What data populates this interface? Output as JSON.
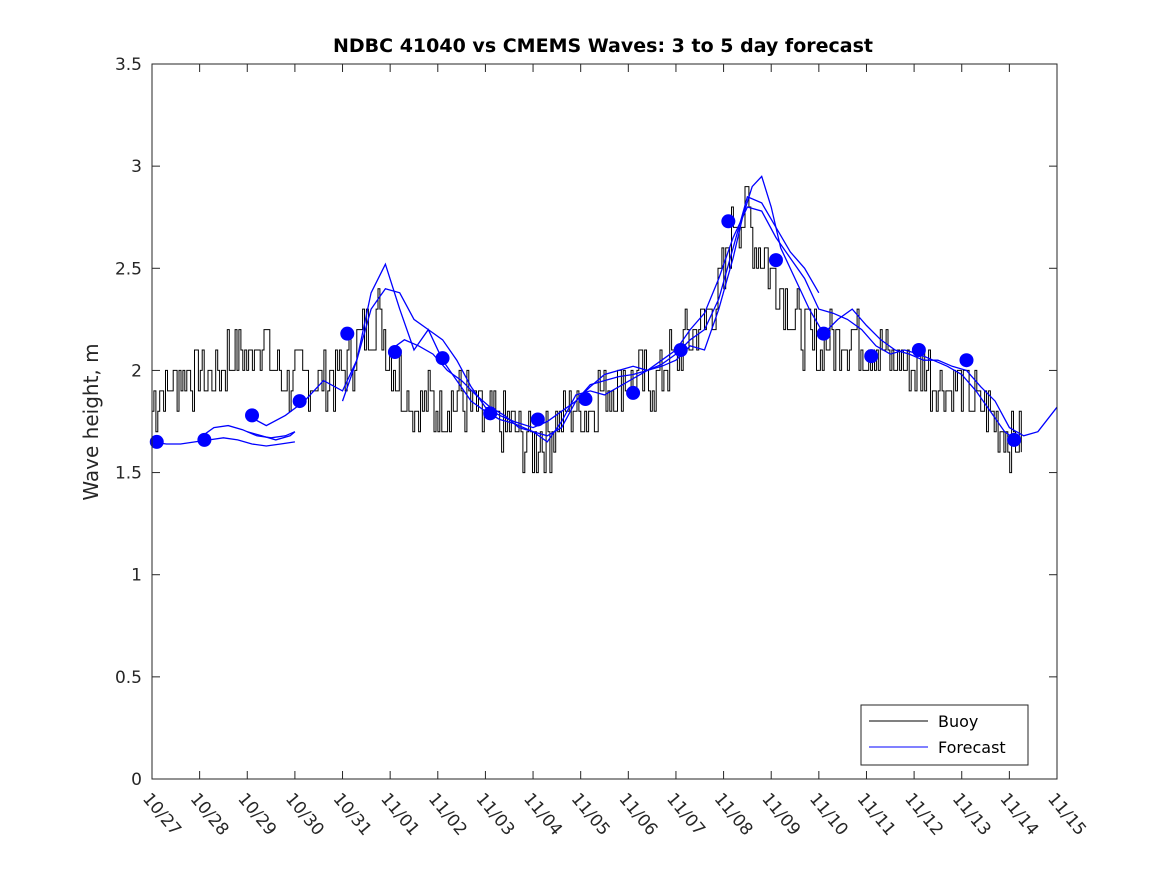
{
  "chart_data": {
    "type": "line",
    "title": "NDBC 41040 vs CMEMS Waves: 3 to 5 day forecast",
    "ylabel": "Wave height, m",
    "xlabel": "",
    "ylim": [
      0,
      3.5
    ],
    "yticks": [
      "0",
      "0.5",
      "1",
      "1.5",
      "2",
      "2.5",
      "3",
      "3.5"
    ],
    "xlim": [
      0,
      19
    ],
    "xtick_labels": [
      "10/27",
      "10/28",
      "10/29",
      "10/30",
      "10/31",
      "11/01",
      "11/02",
      "11/03",
      "11/04",
      "11/05",
      "11/06",
      "11/07",
      "11/08",
      "11/09",
      "11/10",
      "11/11",
      "11/12",
      "11/13",
      "11/14",
      "11/15"
    ],
    "legend_position": "bottom-right",
    "series": [
      {
        "name": "Buoy",
        "color": "#000000",
        "x": [
          0.0,
          0.5,
          1.0,
          1.25,
          1.5,
          1.75,
          2.0,
          2.25,
          2.5,
          2.75,
          3.0,
          3.5,
          4.0,
          4.25,
          4.5,
          4.75,
          5.0,
          5.5,
          6.0,
          6.5,
          7.0,
          7.5,
          8.0,
          8.25,
          8.5,
          8.75,
          9.0,
          9.5,
          10.0,
          10.5,
          11.0,
          11.5,
          11.75,
          12.0,
          12.25,
          12.5,
          12.75,
          13.0,
          13.25,
          13.5,
          13.75,
          14.0,
          14.25,
          14.5,
          15.0,
          15.5,
          16.0,
          16.5,
          17.0,
          17.5,
          18.0,
          18.25
        ],
        "values": [
          1.85,
          1.95,
          2.0,
          1.95,
          2.05,
          2.1,
          2.05,
          2.2,
          2.05,
          1.95,
          1.95,
          1.95,
          2.0,
          2.1,
          2.2,
          2.25,
          2.05,
          1.85,
          1.8,
          1.85,
          1.75,
          1.7,
          1.65,
          1.65,
          1.75,
          1.8,
          1.8,
          1.9,
          1.95,
          1.95,
          2.05,
          2.2,
          2.3,
          2.45,
          2.8,
          2.75,
          2.6,
          2.5,
          2.35,
          2.25,
          2.15,
          2.1,
          2.15,
          2.2,
          2.15,
          2.05,
          2.0,
          1.95,
          1.9,
          1.8,
          1.65,
          1.65
        ]
      },
      {
        "name": "Forecast",
        "color": "#0000ff",
        "segments": [
          {
            "x": [
              0.0,
              0.3,
              0.6,
              0.9,
              1.2,
              1.5,
              1.8,
              2.1,
              2.4,
              2.7,
              3.0
            ],
            "values": [
              1.65,
              1.64,
              1.64,
              1.65,
              1.66,
              1.67,
              1.66,
              1.64,
              1.63,
              1.64,
              1.65
            ]
          },
          {
            "x": [
              1.0,
              1.3,
              1.6,
              1.9,
              2.2,
              2.5,
              2.8,
              3.0
            ],
            "values": [
              1.67,
              1.72,
              1.73,
              1.71,
              1.68,
              1.67,
              1.68,
              1.7
            ]
          },
          {
            "x": [
              2.0,
              2.4,
              2.8,
              3.2,
              3.6,
              4.0,
              4.3,
              4.6,
              4.9,
              5.2,
              5.5,
              5.8,
              6.1,
              6.4,
              6.7,
              7.0,
              7.3,
              7.6,
              8.0,
              8.3,
              8.6,
              8.9,
              9.2,
              9.5,
              9.8,
              10.1,
              10.4,
              10.7,
              11.0,
              11.3,
              11.6,
              11.9,
              12.2,
              12.4,
              12.6,
              12.8,
              13.0,
              13.2,
              13.5,
              13.8,
              14.1,
              14.4,
              14.7,
              15.0,
              15.3,
              15.6,
              15.9,
              16.2,
              16.5,
              16.8,
              17.1,
              17.4,
              17.7,
              18.0,
              18.3,
              18.6,
              19.0
            ],
            "values": [
              1.78,
              1.73,
              1.78,
              1.85,
              1.95,
              1.9,
              2.05,
              2.38,
              2.52,
              2.3,
              2.1,
              2.2,
              2.05,
              1.95,
              1.85,
              1.8,
              1.76,
              1.74,
              1.7,
              1.65,
              1.75,
              1.88,
              1.9,
              1.88,
              1.92,
              1.96,
              2.0,
              2.02,
              2.05,
              2.12,
              2.1,
              2.3,
              2.55,
              2.75,
              2.9,
              2.95,
              2.8,
              2.6,
              2.45,
              2.3,
              2.18,
              2.25,
              2.3,
              2.22,
              2.15,
              2.1,
              2.08,
              2.05,
              2.05,
              2.02,
              2.0,
              1.92,
              1.85,
              1.72,
              1.68,
              1.7,
              1.82
            ]
          },
          {
            "x": [
              4.0,
              4.3,
              4.6,
              4.9,
              5.2,
              5.5,
              5.8,
              6.1,
              6.4,
              6.7,
              7.0,
              7.3,
              7.6,
              8.0,
              8.3,
              8.6,
              8.9,
              9.2,
              9.5,
              9.8,
              10.1,
              10.4,
              10.7,
              11.0,
              11.3,
              11.6,
              11.9,
              12.2,
              12.5,
              12.8,
              13.1,
              13.4,
              13.7,
              14.0
            ],
            "values": [
              1.85,
              2.05,
              2.3,
              2.4,
              2.38,
              2.25,
              2.2,
              2.15,
              2.05,
              1.92,
              1.82,
              1.78,
              1.75,
              1.72,
              1.75,
              1.8,
              1.85,
              1.93,
              1.95,
              1.97,
              1.98,
              2.0,
              2.03,
              2.08,
              2.15,
              2.2,
              2.35,
              2.6,
              2.85,
              2.82,
              2.7,
              2.58,
              2.5,
              2.38
            ]
          },
          {
            "x": [
              5.0,
              5.3,
              5.6,
              5.9,
              6.2,
              6.5,
              6.8,
              7.1,
              7.4,
              7.7,
              8.0,
              8.3,
              8.6,
              8.9,
              9.2,
              9.5,
              9.8,
              10.1,
              10.4,
              10.7,
              11.0,
              11.3,
              11.6,
              11.9,
              12.2,
              12.5,
              12.8,
              13.1,
              13.4,
              13.7,
              14.0,
              14.3,
              14.6,
              14.9,
              15.2,
              15.5,
              15.8,
              16.1,
              16.4,
              16.7,
              17.0,
              17.3,
              17.6,
              17.9,
              18.2
            ],
            "values": [
              2.1,
              2.15,
              2.12,
              2.08,
              2.0,
              1.95,
              1.88,
              1.82,
              1.78,
              1.72,
              1.7,
              1.68,
              1.72,
              1.85,
              1.92,
              1.98,
              2.0,
              2.02,
              2.0,
              2.05,
              2.1,
              2.2,
              2.28,
              2.45,
              2.65,
              2.8,
              2.78,
              2.65,
              2.55,
              2.45,
              2.3,
              2.28,
              2.25,
              2.2,
              2.12,
              2.08,
              2.1,
              2.08,
              2.05,
              2.02,
              1.98,
              1.9,
              1.8,
              1.7,
              1.65
            ]
          },
          {
            "x": [
              2.0,
              2.3,
              2.6,
              2.9,
              3.0
            ],
            "values": [
              1.7,
              1.68,
              1.66,
              1.68,
              1.7
            ]
          }
        ]
      }
    ],
    "markers": {
      "color": "#0000ff",
      "x": [
        0.1,
        1.1,
        2.1,
        3.1,
        4.1,
        5.1,
        6.1,
        7.1,
        8.1,
        9.1,
        10.1,
        11.1,
        12.1,
        13.1,
        14.1,
        15.1,
        16.1,
        17.1,
        18.1
      ],
      "values": [
        1.65,
        1.66,
        1.78,
        1.85,
        2.18,
        2.09,
        2.06,
        1.79,
        1.76,
        1.86,
        1.89,
        2.1,
        2.73,
        2.54,
        2.18,
        2.07,
        2.1,
        2.05,
        1.66
      ]
    }
  }
}
